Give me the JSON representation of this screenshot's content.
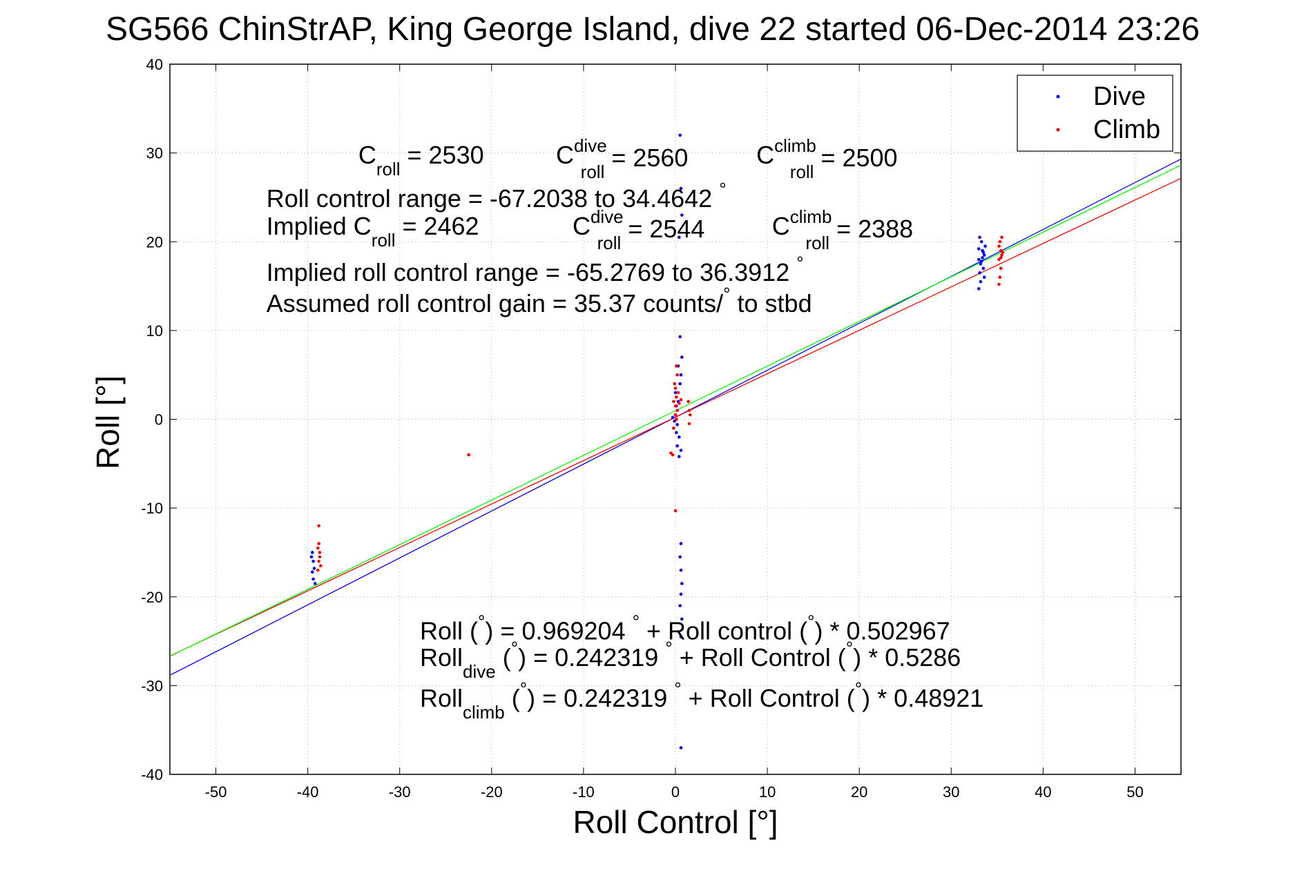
{
  "chart_data": {
    "type": "scatter",
    "title": "SG566 ChinStrAP, King George Island, dive 22 started 06-Dec-2014 23:26",
    "xlabel": "Roll Control [°]",
    "ylabel": "Roll [°]",
    "xlim": [
      -55,
      55
    ],
    "ylim": [
      -40,
      40
    ],
    "xticks": [
      -50,
      -40,
      -30,
      -20,
      -10,
      0,
      10,
      20,
      30,
      40,
      50
    ],
    "yticks": [
      -40,
      -30,
      -20,
      -10,
      0,
      10,
      20,
      30,
      40
    ],
    "grid": true,
    "legend": {
      "position": "top-right",
      "entries": [
        "Dive",
        "Climb"
      ]
    },
    "colors": {
      "dive": "#0000ff",
      "climb": "#ff0000",
      "fit_all": "#00ff00"
    },
    "series": [
      {
        "name": "Dive",
        "points": [
          [
            -39.5,
            -15.0
          ],
          [
            -39.4,
            -16.0
          ],
          [
            -39.3,
            -16.8
          ],
          [
            -39.5,
            -17.2
          ],
          [
            -39.4,
            -18.0
          ],
          [
            -39.2,
            -18.5
          ],
          [
            -39.6,
            -15.5
          ],
          [
            -0.1,
            -0.2
          ],
          [
            0.0,
            0.5
          ],
          [
            0.2,
            1.0
          ],
          [
            -0.2,
            -1.0
          ],
          [
            0.1,
            -1.5
          ],
          [
            0.3,
            2.0
          ],
          [
            0.0,
            3.0
          ],
          [
            0.4,
            -2.0
          ],
          [
            0.2,
            -3.0
          ],
          [
            0.5,
            4.0
          ],
          [
            0.6,
            5.0
          ],
          [
            0.3,
            6.0
          ],
          [
            0.7,
            7.0
          ],
          [
            0.5,
            9.3
          ],
          [
            0.4,
            -4.2
          ],
          [
            0.6,
            -3.5
          ],
          [
            0.2,
            -0.6
          ],
          [
            -0.3,
            0.2
          ],
          [
            0.1,
            1.5
          ],
          [
            0.5,
            32.0
          ],
          [
            0.6,
            26.0
          ],
          [
            0.7,
            23.0
          ],
          [
            0.4,
            20.5
          ],
          [
            0.6,
            -14.0
          ],
          [
            0.5,
            -15.5
          ],
          [
            0.6,
            -17.0
          ],
          [
            0.7,
            -18.5
          ],
          [
            0.6,
            -19.7
          ],
          [
            0.5,
            -21.0
          ],
          [
            0.7,
            -22.5
          ],
          [
            0.6,
            -24.5
          ],
          [
            0.6,
            -37.0
          ],
          [
            33.0,
            18.0
          ],
          [
            33.2,
            17.5
          ],
          [
            33.4,
            19.0
          ],
          [
            33.1,
            16.5
          ],
          [
            33.6,
            18.5
          ],
          [
            33.3,
            20.0
          ],
          [
            33.5,
            17.0
          ],
          [
            33.2,
            15.5
          ],
          [
            33.0,
            14.7
          ],
          [
            33.7,
            19.5
          ],
          [
            33.4,
            18.2
          ],
          [
            33.1,
            20.5
          ],
          [
            33.6,
            16.0
          ],
          [
            33.3,
            17.8
          ],
          [
            33.5,
            18.8
          ],
          [
            33.0,
            19.2
          ]
        ]
      },
      {
        "name": "Climb",
        "points": [
          [
            -38.8,
            -12.0
          ],
          [
            -38.9,
            -14.5
          ],
          [
            -38.7,
            -15.5
          ],
          [
            -38.8,
            -16.0
          ],
          [
            -38.6,
            -16.5
          ],
          [
            -38.9,
            -17.0
          ],
          [
            -38.7,
            -15.0
          ],
          [
            -38.8,
            -14.0
          ],
          [
            -22.5,
            -4.0
          ],
          [
            0.0,
            0.5
          ],
          [
            0.2,
            1.0
          ],
          [
            -0.2,
            2.0
          ],
          [
            0.1,
            2.5
          ],
          [
            0.3,
            3.0
          ],
          [
            0.0,
            3.5
          ],
          [
            -0.1,
            4.0
          ],
          [
            0.2,
            5.0
          ],
          [
            0.0,
            1.5
          ],
          [
            0.1,
            0.0
          ],
          [
            -0.2,
            -1.0
          ],
          [
            1.5,
            1.0
          ],
          [
            1.6,
            0.5
          ],
          [
            1.4,
            2.0
          ],
          [
            1.5,
            -0.5
          ],
          [
            -0.5,
            -3.8
          ],
          [
            -0.3,
            -4.0
          ],
          [
            0.0,
            -10.3
          ],
          [
            0.4,
            1.8
          ],
          [
            0.6,
            2.2
          ],
          [
            0.1,
            6.0
          ],
          [
            35.2,
            18.0
          ],
          [
            35.4,
            19.0
          ],
          [
            35.3,
            20.0
          ],
          [
            35.5,
            18.5
          ],
          [
            35.4,
            17.0
          ],
          [
            35.2,
            19.5
          ],
          [
            35.6,
            18.8
          ],
          [
            35.3,
            16.0
          ],
          [
            35.2,
            15.2
          ],
          [
            35.5,
            20.5
          ],
          [
            35.4,
            18.2
          ]
        ]
      }
    ],
    "fit_lines": [
      {
        "color": "#0000ff",
        "intercept": 0.242319,
        "slope": 0.5286
      },
      {
        "color": "#ff0000",
        "intercept": 0.242319,
        "slope": 0.48921
      },
      {
        "color": "#00ff00",
        "intercept": 0.969204,
        "slope": 0.502967
      }
    ],
    "annotations": [
      {
        "id": "croll",
        "x": -34.5,
        "y": 28.8,
        "parts": [
          [
            "C",
            ""
          ],
          [
            "roll",
            "sub"
          ],
          [
            " = 2530",
            ""
          ]
        ]
      },
      {
        "id": "cdive",
        "x": -13.0,
        "y": 28.8,
        "parts": [
          [
            "C",
            ""
          ],
          [
            "dive",
            "sup"
          ],
          [
            "roll",
            "sub"
          ],
          [
            " = 2560",
            ""
          ]
        ]
      },
      {
        "id": "cclimb",
        "x": 8.8,
        "y": 28.8,
        "parts": [
          [
            "C",
            ""
          ],
          [
            "climb",
            "sup"
          ],
          [
            "roll",
            "sub"
          ],
          [
            " = 2500",
            ""
          ]
        ]
      },
      {
        "id": "range",
        "x": -44.5,
        "y": 23.9,
        "parts": [
          [
            "Roll control range = -67.2038 to 34.4642 ",
            ""
          ],
          [
            "°",
            "sup"
          ]
        ]
      },
      {
        "id": "implied-croll",
        "x": -44.5,
        "y": 20.8,
        "parts": [
          [
            "Implied C",
            ""
          ],
          [
            "roll",
            "sub"
          ],
          [
            " = 2462",
            ""
          ]
        ]
      },
      {
        "id": "implied-cdive",
        "x": -11.2,
        "y": 20.8,
        "parts": [
          [
            "C",
            ""
          ],
          [
            "dive",
            "sup"
          ],
          [
            "roll",
            "sub"
          ],
          [
            " = 2544",
            ""
          ]
        ]
      },
      {
        "id": "implied-cclimb",
        "x": 10.5,
        "y": 20.8,
        "parts": [
          [
            "C",
            ""
          ],
          [
            "climb",
            "sup"
          ],
          [
            "roll",
            "sub"
          ],
          [
            " = 2388",
            ""
          ]
        ]
      },
      {
        "id": "implied-range",
        "x": -44.5,
        "y": 15.6,
        "parts": [
          [
            "Implied roll control range = -65.2769 to 36.3912 ",
            ""
          ],
          [
            "°",
            "sup"
          ]
        ]
      },
      {
        "id": "gain",
        "x": -44.5,
        "y": 12.1,
        "parts": [
          [
            "Assumed roll control gain = 35.37 counts/",
            ""
          ],
          [
            "°",
            "sup"
          ],
          [
            " to stbd",
            ""
          ]
        ]
      },
      {
        "id": "fit-all",
        "x": -27.8,
        "y": -24.8,
        "parts": [
          [
            "Roll (",
            ""
          ],
          [
            "°",
            "sup"
          ],
          [
            ") = 0.969204 ",
            ""
          ],
          [
            "°",
            "sup"
          ],
          [
            " + Roll control (",
            ""
          ],
          [
            "°",
            "sup"
          ],
          [
            ") * 0.502967",
            ""
          ]
        ]
      },
      {
        "id": "fit-dive",
        "x": -27.8,
        "y": -27.8,
        "parts": [
          [
            "Roll",
            ""
          ],
          [
            "dive",
            "sub"
          ],
          [
            " (",
            ""
          ],
          [
            "°",
            "sup"
          ],
          [
            ") = 0.242319 ",
            ""
          ],
          [
            "°",
            "sup"
          ],
          [
            " + Roll Control (",
            ""
          ],
          [
            "°",
            "sup"
          ],
          [
            ") * 0.5286",
            ""
          ]
        ]
      },
      {
        "id": "fit-climb",
        "x": -27.8,
        "y": -32.4,
        "parts": [
          [
            "Roll",
            ""
          ],
          [
            "climb",
            "sub"
          ],
          [
            " (",
            ""
          ],
          [
            "°",
            "sup"
          ],
          [
            ") = 0.242319 ",
            ""
          ],
          [
            "°",
            "sup"
          ],
          [
            " + Roll Control (",
            ""
          ],
          [
            "°",
            "sup"
          ],
          [
            ") * 0.48921",
            ""
          ]
        ]
      }
    ]
  }
}
